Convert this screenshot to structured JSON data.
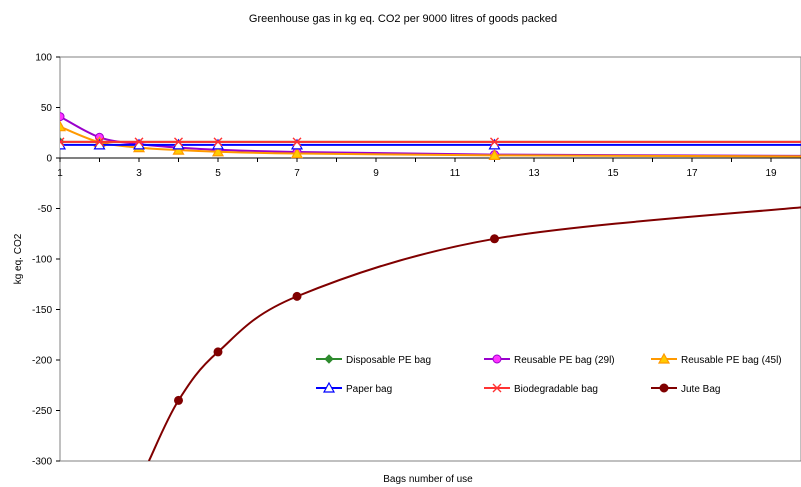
{
  "chart_data": {
    "type": "line",
    "title": "Greenhouse gas in kg eq. CO2 per 9000 litres of goods packed",
    "xlabel": "Bags number of use",
    "ylabel": "kg eq. CO2",
    "xlim": [
      1,
      20
    ],
    "ylim": [
      -300,
      100
    ],
    "x_ticks": [
      1,
      3,
      5,
      7,
      9,
      11,
      13,
      15,
      17,
      19
    ],
    "y_ticks": [
      100,
      50,
      0,
      -50,
      -100,
      -150,
      -200,
      -250,
      -300
    ],
    "grid": false,
    "legend_position": "bottom-right",
    "marker_x": [
      1,
      2,
      3,
      4,
      5,
      7,
      12
    ],
    "series": [
      {
        "name": "Disposable PE bag",
        "color": "#2e8b2e",
        "marker": "diamond",
        "x": [
          1,
          20
        ],
        "y": [
          16,
          16
        ]
      },
      {
        "name": "Reusable PE bag (29l)",
        "color": "#9900cc",
        "marker_color": "#ff33ff",
        "marker": "circle",
        "x": [
          1,
          2,
          3,
          4,
          5,
          7,
          12,
          20
        ],
        "y": [
          41,
          20.5,
          13.7,
          10.3,
          8.2,
          5.9,
          3.4,
          2.1
        ]
      },
      {
        "name": "Reusable PE bag (45l)",
        "color": "#ff9900",
        "marker_color": "#ffcc00",
        "marker": "triangle",
        "x": [
          1,
          2,
          3,
          4,
          5,
          7,
          12,
          20
        ],
        "y": [
          31,
          15.5,
          10.3,
          7.8,
          6.2,
          4.4,
          2.6,
          1.6
        ]
      },
      {
        "name": "Paper bag",
        "color": "#0000ff",
        "marker": "triangle-open",
        "x": [
          1,
          2,
          3,
          4,
          5,
          7,
          12,
          20
        ],
        "y": [
          13,
          13,
          13,
          13,
          13,
          13,
          13,
          13
        ]
      },
      {
        "name": "Biodegradable bag",
        "color": "#ff3333",
        "marker": "star",
        "x": [
          1,
          2,
          3,
          4,
          5,
          7,
          12,
          20
        ],
        "y": [
          16,
          16,
          16,
          16,
          16,
          16,
          16,
          16
        ]
      },
      {
        "name": "Jute Bag",
        "color": "#800000",
        "marker": "circle",
        "x": [
          3.25,
          4,
          5,
          7,
          12,
          20
        ],
        "y": [
          -300,
          -240,
          -192,
          -137,
          -80,
          -48
        ]
      }
    ]
  }
}
